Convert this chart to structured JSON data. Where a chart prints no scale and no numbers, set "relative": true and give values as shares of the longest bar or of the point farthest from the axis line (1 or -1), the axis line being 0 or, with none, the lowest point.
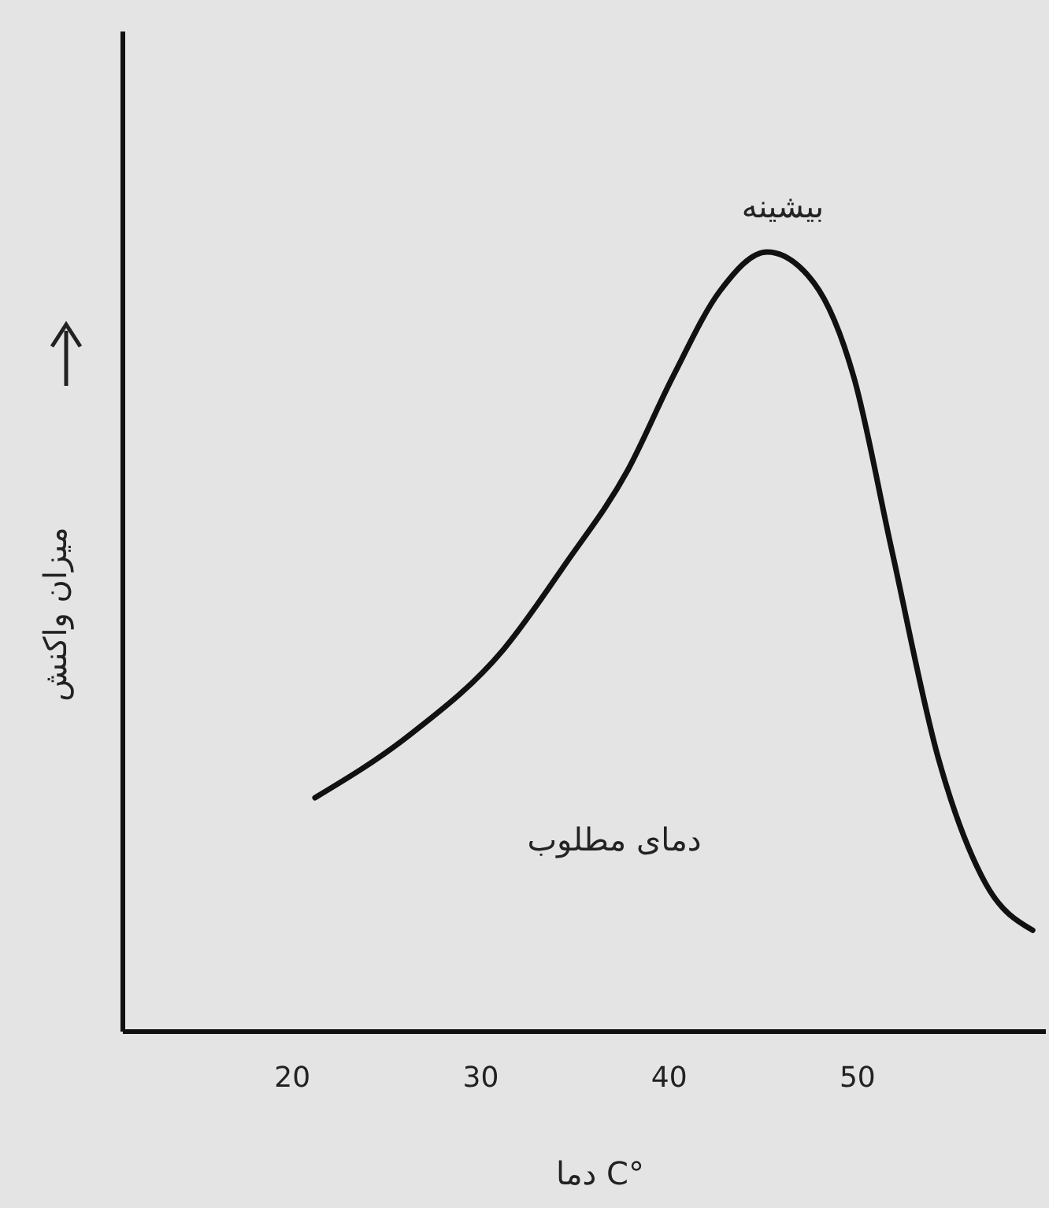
{
  "chart_data": {
    "type": "line",
    "relative": true,
    "xlabel": "°C دما",
    "ylabel": "میزان واکنش",
    "annotations": [
      {
        "text": "بیشینه",
        "x": 45.2,
        "y": 1
      },
      "دمای مطلوب"
    ],
    "x": [
      21.2,
      26.2,
      31.2,
      34.5,
      37.8,
      40.2,
      42.7,
      45.2,
      47.7,
      49.8,
      51.8,
      54.3,
      56.8,
      59.3
    ],
    "xlim": [
      11,
      60
    ],
    "xticks": [
      20,
      30,
      40,
      50
    ],
    "series": [
      {
        "color": "#111111",
        "values": [
          0.3,
          0.38,
          0.49,
          0.6,
          0.72,
          0.84,
          0.95,
          1,
          0.96,
          0.84,
          0.62,
          0.35,
          0.19,
          0.13
        ]
      }
    ],
    "grid": false,
    "marker": "none",
    "line_style": "solid"
  }
}
